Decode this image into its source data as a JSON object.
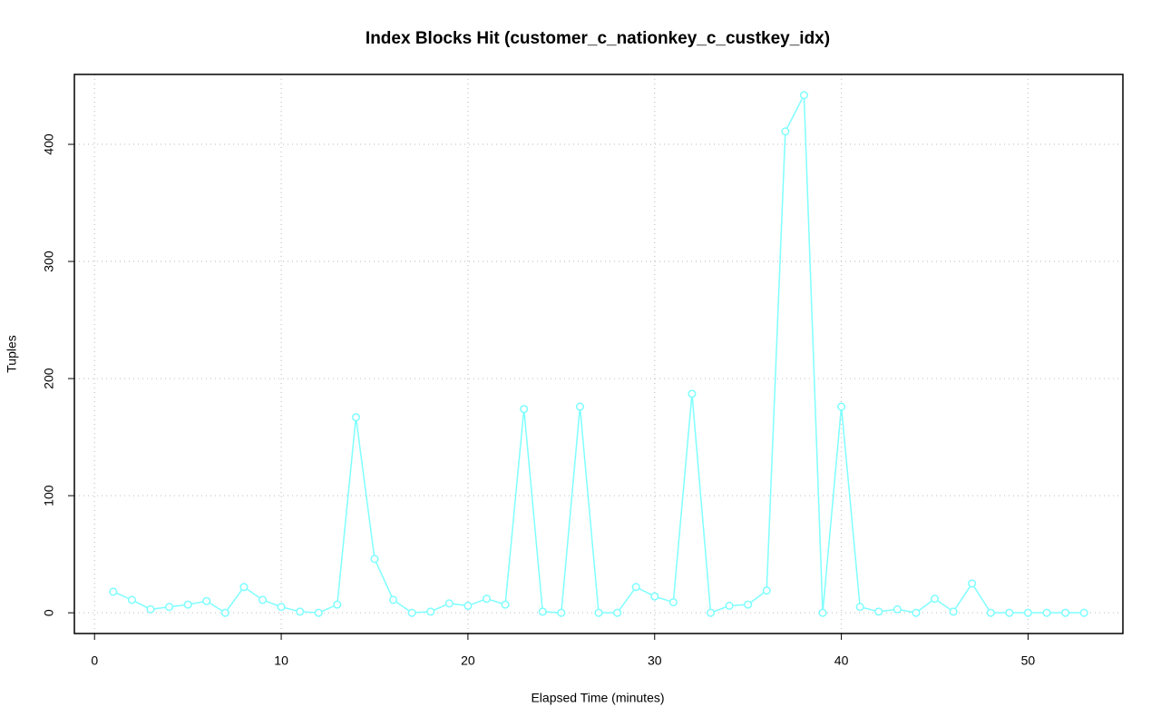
{
  "chart_data": {
    "type": "line",
    "title": "Index Blocks Hit (customer_c_nationkey_c_custkey_idx)",
    "x_label": "Elapsed Time (minutes)",
    "y_label": "Tuples",
    "x": [
      1,
      2,
      3,
      4,
      5,
      6,
      7,
      8,
      9,
      10,
      11,
      12,
      13,
      14,
      15,
      16,
      17,
      18,
      19,
      20,
      21,
      22,
      23,
      24,
      25,
      26,
      27,
      28,
      29,
      30,
      31,
      32,
      33,
      34,
      35,
      36,
      37,
      38,
      39,
      40,
      41,
      42,
      43,
      44,
      45,
      46,
      47,
      48,
      49,
      50,
      51,
      52,
      53
    ],
    "series": [
      {
        "color": "#7fffff",
        "values": [
          18,
          11,
          3,
          5,
          7,
          10,
          0,
          22,
          11,
          5,
          1,
          0,
          7,
          167,
          46,
          11,
          0,
          1,
          8,
          6,
          12,
          7,
          174,
          1,
          0,
          176,
          0,
          0,
          22,
          14,
          9,
          187,
          0,
          6,
          7,
          19,
          411,
          442,
          0,
          176,
          5,
          1,
          3,
          0,
          12,
          1,
          25,
          0,
          0,
          0,
          0,
          0,
          0
        ]
      }
    ],
    "xlim": [
      -1.08,
      55.08
    ],
    "ylim": [
      -17.7,
      459.7
    ],
    "xticks": [
      0,
      10,
      20,
      30,
      40,
      50
    ],
    "yticks": [
      0,
      100,
      200,
      300,
      400
    ],
    "grid": true
  }
}
